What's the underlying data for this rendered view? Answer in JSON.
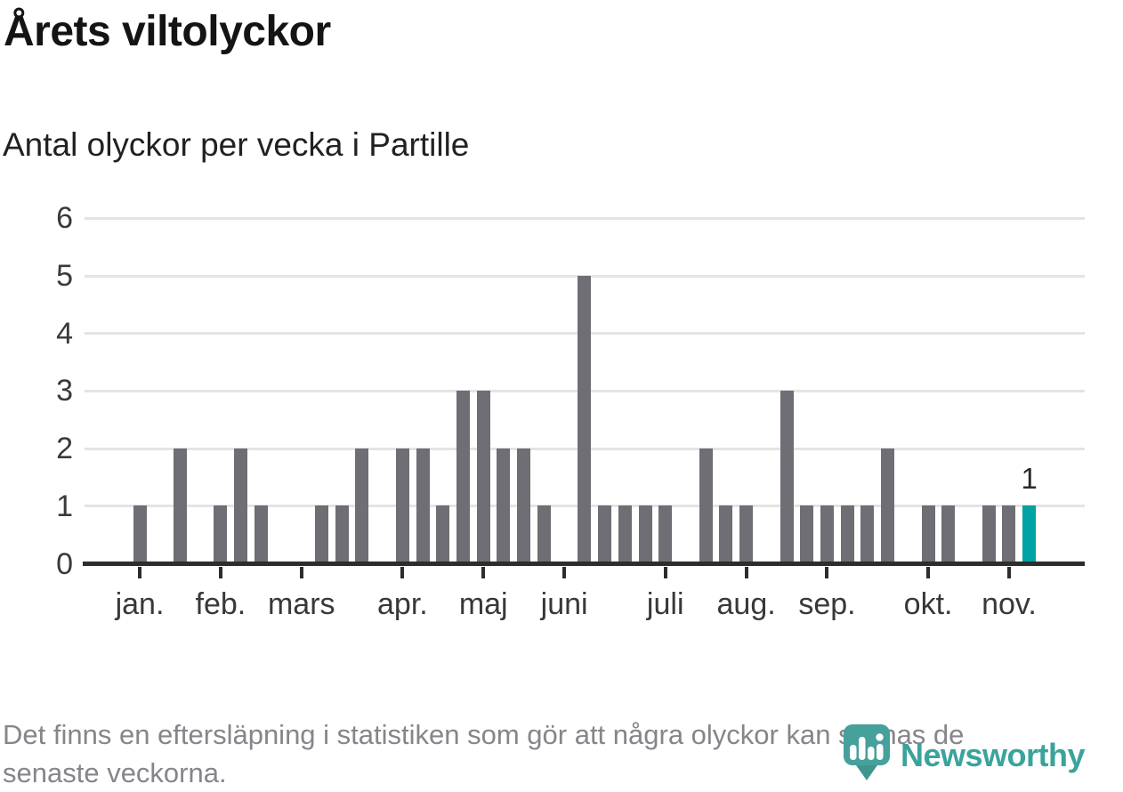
{
  "header": {
    "title": "Årets viltolyckor",
    "subtitle": "Antal olyckor per vecka i Partille"
  },
  "footer": {
    "line1": "Det finns en eftersläpning i statistiken som gör att några olyckor kan saknas de",
    "line2": "senaste veckorna."
  },
  "logo": {
    "wordmark": "Newsworthy",
    "icon": "newsworthy-pin-bar-chart-icon",
    "brand_color": "#3aa39c"
  },
  "chart_data": {
    "type": "bar",
    "title": "Årets viltolyckor",
    "subtitle": "Antal olyckor per vecka i Partille",
    "x_unit": "week-of-year",
    "values": [
      1,
      0,
      2,
      0,
      1,
      2,
      1,
      0,
      0,
      1,
      1,
      2,
      0,
      2,
      2,
      1,
      3,
      3,
      2,
      2,
      1,
      0,
      5,
      1,
      1,
      1,
      1,
      0,
      2,
      1,
      1,
      0,
      3,
      1,
      1,
      1,
      1,
      2,
      0,
      1,
      1,
      0,
      1,
      1,
      1
    ],
    "months": [
      {
        "label": "jan.",
        "week_index": 0
      },
      {
        "label": "feb.",
        "week_index": 4
      },
      {
        "label": "mars",
        "week_index": 8
      },
      {
        "label": "apr.",
        "week_index": 13
      },
      {
        "label": "maj",
        "week_index": 17
      },
      {
        "label": "juni",
        "week_index": 21
      },
      {
        "label": "juli",
        "week_index": 26
      },
      {
        "label": "aug.",
        "week_index": 30
      },
      {
        "label": "sep.",
        "week_index": 34
      },
      {
        "label": "okt.",
        "week_index": 39
      },
      {
        "label": "nov.",
        "week_index": 43
      }
    ],
    "yticks": [
      0,
      1,
      2,
      3,
      4,
      5,
      6
    ],
    "ylim": [
      0,
      6
    ],
    "grid": "horizontal",
    "legend": "none",
    "bar_color": "#6e6e74",
    "highlight_color": "#00a2a3",
    "highlight_index": 44,
    "highlight_label": "1"
  }
}
